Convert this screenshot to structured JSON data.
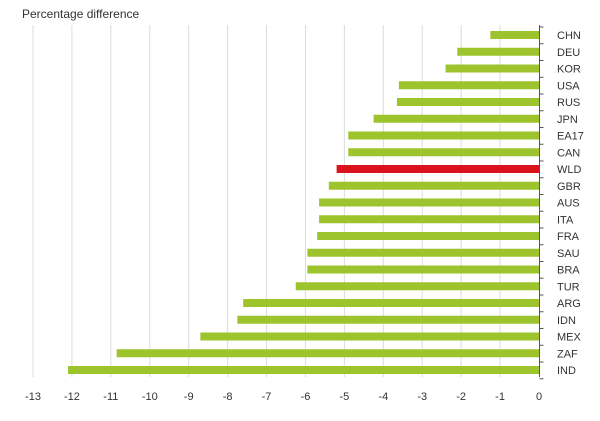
{
  "chart_data": {
    "type": "bar",
    "orientation": "horizontal",
    "title": "Percentage difference",
    "xlabel": "",
    "ylabel": "",
    "xlim": [
      -13,
      0
    ],
    "xticks": [
      "-13",
      "-12",
      "-11",
      "-10",
      "-9",
      "-8",
      "-7",
      "-6",
      "-5",
      "-4",
      "-3",
      "-2",
      "-1",
      "0"
    ],
    "categories": [
      "CHN",
      "DEU",
      "KOR",
      "USA",
      "RUS",
      "JPN",
      "EA17",
      "CAN",
      "WLD",
      "GBR",
      "AUS",
      "ITA",
      "FRA",
      "SAU",
      "BRA",
      "TUR",
      "ARG",
      "IDN",
      "MEX",
      "ZAF",
      "IND"
    ],
    "values": [
      -1.25,
      -2.1,
      -2.4,
      -3.6,
      -3.65,
      -4.25,
      -4.9,
      -4.9,
      -5.2,
      -5.4,
      -5.65,
      -5.65,
      -5.7,
      -5.95,
      -5.95,
      -6.25,
      -7.6,
      -7.75,
      -8.7,
      -10.85,
      -12.1
    ],
    "highlight": "WLD",
    "grid": true,
    "colors": {
      "bar": "#9dc42c",
      "highlight": "#d9121b",
      "grid": "#dcdcdc",
      "axis": "#555555",
      "text": "#333333"
    }
  }
}
